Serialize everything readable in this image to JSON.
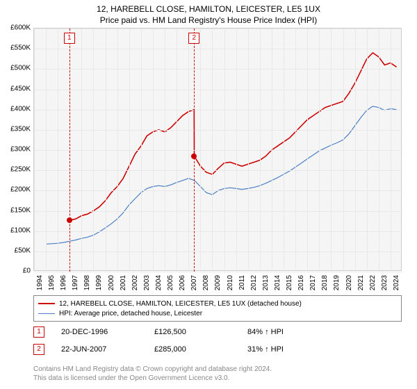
{
  "titles": {
    "line1": "12, HAREBELL CLOSE, HAMILTON, LEICESTER, LE5 1UX",
    "line2": "Price paid vs. HM Land Registry's House Price Index (HPI)"
  },
  "chart": {
    "type": "line",
    "background_color": "#f5f5f5",
    "grid_color": "#e8e8e8",
    "xlim": [
      1994,
      2025
    ],
    "ylim": [
      0,
      600000
    ],
    "ytick_step": 50000,
    "ytick_prefix": "£",
    "ytick_suffix": "K",
    "yticks": [
      "£0",
      "£50K",
      "£100K",
      "£150K",
      "£200K",
      "£250K",
      "£300K",
      "£350K",
      "£400K",
      "£450K",
      "£500K",
      "£550K",
      "£600K"
    ],
    "xticks": [
      1994,
      1995,
      1996,
      1997,
      1998,
      1999,
      2000,
      2001,
      2002,
      2003,
      2004,
      2005,
      2006,
      2007,
      2008,
      2009,
      2010,
      2011,
      2012,
      2013,
      2014,
      2015,
      2016,
      2017,
      2018,
      2019,
      2020,
      2021,
      2022,
      2023,
      2024
    ],
    "series": [
      {
        "name": "12, HAREBELL CLOSE, HAMILTON, LEICESTER, LE5 1UX (detached house)",
        "color": "#cc0000",
        "line_width": 1.6,
        "points": [
          [
            1996.97,
            126500
          ],
          [
            1997.5,
            130000
          ],
          [
            1998,
            138000
          ],
          [
            1998.5,
            142000
          ],
          [
            1999,
            150000
          ],
          [
            1999.5,
            160000
          ],
          [
            2000,
            175000
          ],
          [
            2000.5,
            195000
          ],
          [
            2001,
            210000
          ],
          [
            2001.5,
            230000
          ],
          [
            2002,
            260000
          ],
          [
            2002.5,
            290000
          ],
          [
            2003,
            310000
          ],
          [
            2003.5,
            335000
          ],
          [
            2004,
            345000
          ],
          [
            2004.5,
            350000
          ],
          [
            2005,
            345000
          ],
          [
            2005.5,
            355000
          ],
          [
            2006,
            370000
          ],
          [
            2006.5,
            385000
          ],
          [
            2007,
            395000
          ],
          [
            2007.47,
            400000
          ],
          [
            2007.48,
            285000
          ],
          [
            2008,
            260000
          ],
          [
            2008.5,
            245000
          ],
          [
            2009,
            240000
          ],
          [
            2009.5,
            255000
          ],
          [
            2010,
            268000
          ],
          [
            2010.5,
            270000
          ],
          [
            2011,
            265000
          ],
          [
            2011.5,
            260000
          ],
          [
            2012,
            265000
          ],
          [
            2012.5,
            270000
          ],
          [
            2013,
            275000
          ],
          [
            2013.5,
            285000
          ],
          [
            2014,
            300000
          ],
          [
            2014.5,
            310000
          ],
          [
            2015,
            320000
          ],
          [
            2015.5,
            330000
          ],
          [
            2016,
            345000
          ],
          [
            2016.5,
            360000
          ],
          [
            2017,
            375000
          ],
          [
            2017.5,
            385000
          ],
          [
            2018,
            395000
          ],
          [
            2018.5,
            405000
          ],
          [
            2019,
            410000
          ],
          [
            2019.5,
            415000
          ],
          [
            2020,
            420000
          ],
          [
            2020.5,
            440000
          ],
          [
            2021,
            465000
          ],
          [
            2021.5,
            495000
          ],
          [
            2022,
            525000
          ],
          [
            2022.5,
            540000
          ],
          [
            2023,
            530000
          ],
          [
            2023.5,
            510000
          ],
          [
            2024,
            515000
          ],
          [
            2024.5,
            505000
          ]
        ]
      },
      {
        "name": "HPI: Average price, detached house, Leicester",
        "color": "#4a7fc4",
        "line_width": 1.2,
        "points": [
          [
            1995,
            68000
          ],
          [
            1995.5,
            69000
          ],
          [
            1996,
            70000
          ],
          [
            1996.5,
            72000
          ],
          [
            1997,
            75000
          ],
          [
            1997.5,
            78000
          ],
          [
            1998,
            82000
          ],
          [
            1998.5,
            85000
          ],
          [
            1999,
            90000
          ],
          [
            1999.5,
            98000
          ],
          [
            2000,
            108000
          ],
          [
            2000.5,
            118000
          ],
          [
            2001,
            130000
          ],
          [
            2001.5,
            145000
          ],
          [
            2002,
            165000
          ],
          [
            2002.5,
            180000
          ],
          [
            2003,
            195000
          ],
          [
            2003.5,
            205000
          ],
          [
            2004,
            210000
          ],
          [
            2004.5,
            212000
          ],
          [
            2005,
            210000
          ],
          [
            2005.5,
            214000
          ],
          [
            2006,
            220000
          ],
          [
            2006.5,
            225000
          ],
          [
            2007,
            230000
          ],
          [
            2007.5,
            225000
          ],
          [
            2008,
            210000
          ],
          [
            2008.5,
            195000
          ],
          [
            2009,
            190000
          ],
          [
            2009.5,
            200000
          ],
          [
            2010,
            205000
          ],
          [
            2010.5,
            207000
          ],
          [
            2011,
            205000
          ],
          [
            2011.5,
            203000
          ],
          [
            2012,
            205000
          ],
          [
            2012.5,
            208000
          ],
          [
            2013,
            212000
          ],
          [
            2013.5,
            218000
          ],
          [
            2014,
            225000
          ],
          [
            2014.5,
            232000
          ],
          [
            2015,
            240000
          ],
          [
            2015.5,
            248000
          ],
          [
            2016,
            258000
          ],
          [
            2016.5,
            268000
          ],
          [
            2017,
            278000
          ],
          [
            2017.5,
            288000
          ],
          [
            2018,
            298000
          ],
          [
            2018.5,
            305000
          ],
          [
            2019,
            312000
          ],
          [
            2019.5,
            318000
          ],
          [
            2020,
            325000
          ],
          [
            2020.5,
            340000
          ],
          [
            2021,
            360000
          ],
          [
            2021.5,
            380000
          ],
          [
            2022,
            398000
          ],
          [
            2022.5,
            408000
          ],
          [
            2023,
            405000
          ],
          [
            2023.5,
            398000
          ],
          [
            2024,
            402000
          ],
          [
            2024.5,
            400000
          ]
        ]
      }
    ],
    "markers": [
      {
        "id": "1",
        "x": 1996.97,
        "y": 126500
      },
      {
        "id": "2",
        "x": 2007.47,
        "y": 285000
      }
    ]
  },
  "legend": {
    "items": [
      {
        "color": "#cc0000",
        "width": 2,
        "label": "12, HAREBELL CLOSE, HAMILTON, LEICESTER, LE5 1UX (detached house)"
      },
      {
        "color": "#4a7fc4",
        "width": 1,
        "label": "HPI: Average price, detached house, Leicester"
      }
    ]
  },
  "sales": [
    {
      "id": "1",
      "date": "20-DEC-1996",
      "price": "£126,500",
      "delta": "84% ↑ HPI"
    },
    {
      "id": "2",
      "date": "22-JUN-2007",
      "price": "£285,000",
      "delta": "31% ↑ HPI"
    }
  ],
  "footer": {
    "line1": "Contains HM Land Registry data © Crown copyright and database right 2024.",
    "line2": "This data is licensed under the Open Government Licence v3.0."
  },
  "colors": {
    "marker_border": "#cc0000",
    "footer_text": "#888888"
  }
}
